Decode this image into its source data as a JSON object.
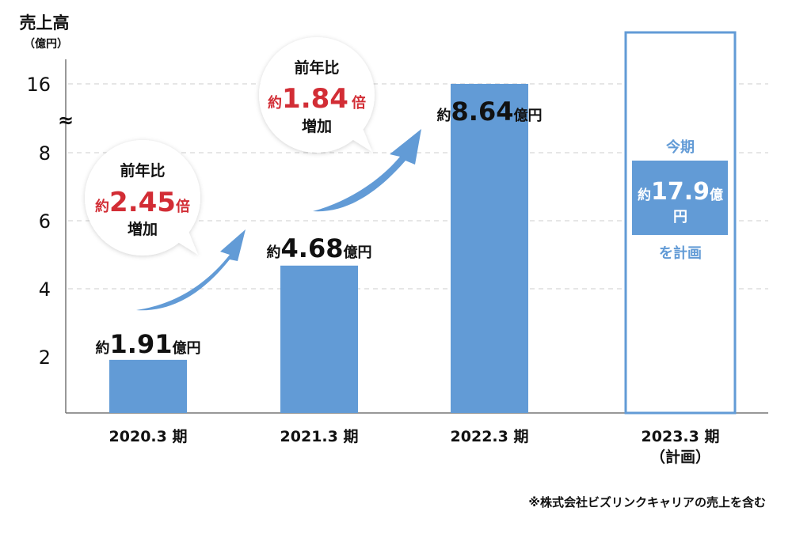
{
  "chart_data": {
    "type": "bar",
    "title": "売上高",
    "ylabel": "売上高",
    "yunit": "（億円）",
    "ylim": [
      0,
      16
    ],
    "axis_break": "≈",
    "yticks": [
      2,
      4,
      6,
      8,
      16
    ],
    "grid": true,
    "categories": [
      "2020.3 期",
      "2021.3 期",
      "2022.3 期",
      "2023.3 期"
    ],
    "category_sub": [
      "",
      "",
      "",
      "（計画）"
    ],
    "values": [
      1.91,
      4.68,
      8.64,
      17.9
    ],
    "value_labels": [
      {
        "pre": "約",
        "num": "1.91",
        "unit": "億円"
      },
      {
        "pre": "約",
        "num": "4.68",
        "unit": "億円"
      },
      {
        "pre": "約",
        "num": "8.64",
        "unit": "億円"
      }
    ],
    "plan": {
      "top": "今期",
      "pre": "約",
      "num": "17.9",
      "unit1": "億",
      "unit2": "円",
      "bottom": "を計画"
    },
    "annotations": [
      {
        "line1": "前年比",
        "pre": "約",
        "num": "2.45",
        "unit": "倍",
        "line3": "増加"
      },
      {
        "line1": "前年比",
        "pre": "約",
        "num": "1.84",
        "unit": "倍",
        "line3": "増加"
      }
    ],
    "footnote": "※株式会社ビズリンクキャリアの売上を含む",
    "colors": {
      "bar": "#629bd6",
      "accent": "#d22d35",
      "text": "#111111",
      "grid": "#cccccc"
    }
  }
}
